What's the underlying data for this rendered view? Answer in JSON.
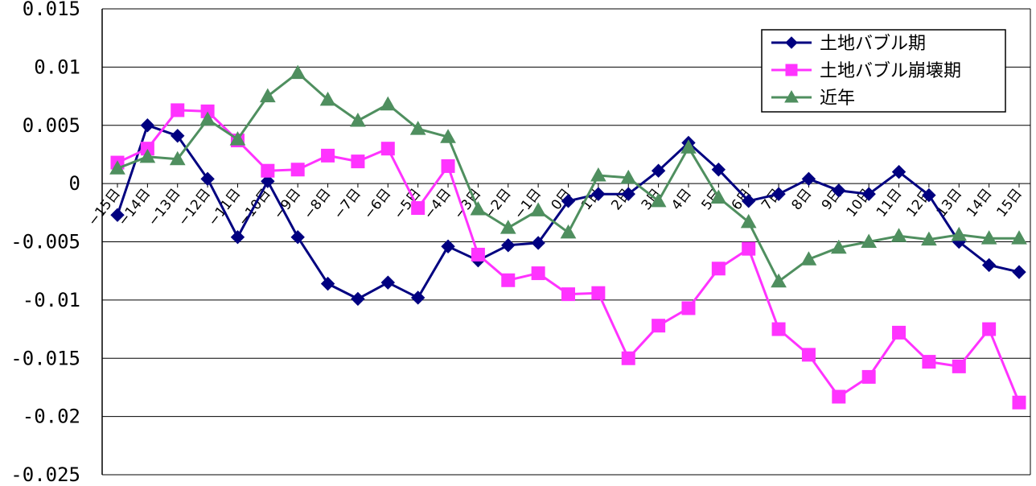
{
  "chart_data": {
    "type": "line",
    "title": "",
    "xlabel": "",
    "ylabel": "",
    "ylim": [
      -0.025,
      0.015
    ],
    "ytick_step": 0.005,
    "yticks": [
      "0.015",
      "0.01",
      "0.005",
      "0",
      "-0.005",
      "-0.01",
      "-0.015",
      "-0.02",
      "-0.025"
    ],
    "grid": true,
    "legend_position": "top-right",
    "categories": [
      "−15日",
      "−14日",
      "−13日",
      "−12日",
      "−11日",
      "−10日",
      "−9日",
      "−8日",
      "−7日",
      "−6日",
      "−5日",
      "−4日",
      "−3日",
      "−2日",
      "−1日",
      "0日",
      "1日",
      "2日",
      "3日",
      "4日",
      "5日",
      "6日",
      "7日",
      "8日",
      "9日",
      "10日",
      "11日",
      "12日",
      "13日",
      "14日",
      "15日"
    ],
    "series": [
      {
        "name": "土地バブル期",
        "color": "#000080",
        "marker": "diamond",
        "values": [
          -0.0027,
          0.005,
          0.0041,
          0.0004,
          -0.0046,
          0.0002,
          -0.0046,
          -0.0086,
          -0.0099,
          -0.0085,
          -0.0098,
          -0.0054,
          -0.0066,
          -0.0053,
          -0.0051,
          -0.0015,
          -0.0009,
          -0.0009,
          0.0011,
          0.0035,
          0.0012,
          -0.0015,
          -0.0009,
          0.0004,
          -0.0006,
          -0.0009,
          0.001,
          -0.001,
          -0.005,
          -0.007,
          -0.0076
        ]
      },
      {
        "name": "土地バブル崩壊期",
        "color": "#ff33ff",
        "marker": "square",
        "values": [
          0.0018,
          0.003,
          0.0063,
          0.0062,
          0.0037,
          0.0011,
          0.0012,
          0.0024,
          0.0019,
          0.003,
          -0.0021,
          0.0015,
          -0.0061,
          -0.0083,
          -0.0077,
          -0.0095,
          -0.0094,
          -0.015,
          -0.0122,
          -0.0107,
          -0.0073,
          -0.0056,
          -0.0125,
          -0.0147,
          -0.0183,
          -0.0166,
          -0.0128,
          -0.0153,
          -0.0157,
          -0.0125,
          -0.0188
        ]
      },
      {
        "name": "近年",
        "color": "#4f8f5f",
        "marker": "triangle",
        "values": [
          0.0013,
          0.0023,
          0.0021,
          0.0055,
          0.0038,
          0.0075,
          0.0095,
          0.0072,
          0.0054,
          0.0068,
          0.0047,
          0.004,
          -0.0022,
          -0.0038,
          -0.0023,
          -0.0042,
          0.0007,
          0.0005,
          -0.0015,
          0.0031,
          -0.0012,
          -0.0033,
          -0.0084,
          -0.0065,
          -0.0055,
          -0.005,
          -0.0045,
          -0.0048,
          -0.0044,
          -0.0047,
          -0.0047
        ]
      }
    ]
  }
}
